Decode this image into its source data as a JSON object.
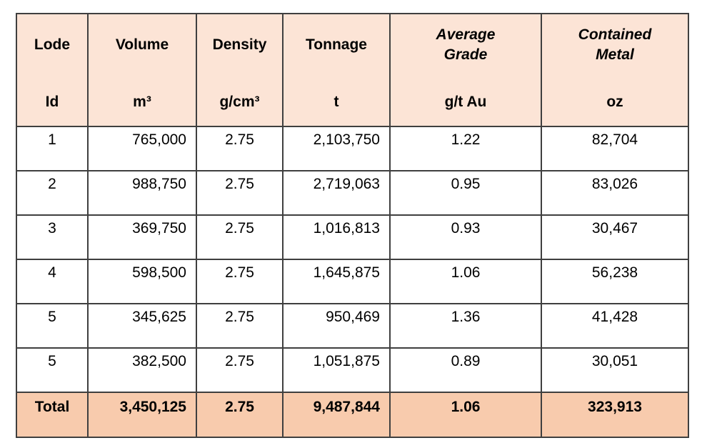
{
  "table": {
    "colors": {
      "header_bg": "#FCE4D6",
      "total_bg": "#F8CBAD",
      "border": "#3F3F3F",
      "text": "#000000"
    },
    "columns": [
      {
        "title": "Lode",
        "unit": "Id"
      },
      {
        "title": "Volume",
        "unit": "m³"
      },
      {
        "title": "Density",
        "unit": "g/cm³"
      },
      {
        "title": "Tonnage",
        "unit": "t"
      },
      {
        "title": "Average Grade",
        "unit": "g/t Au"
      },
      {
        "title": "Contained Metal",
        "unit": "oz"
      }
    ],
    "rows": [
      {
        "lode": "1",
        "volume": "765,000",
        "density": "2.75",
        "tonnage": "2,103,750",
        "grade": "1.22",
        "metal": "82,704"
      },
      {
        "lode": "2",
        "volume": "988,750",
        "density": "2.75",
        "tonnage": "2,719,063",
        "grade": "0.95",
        "metal": "83,026"
      },
      {
        "lode": "3",
        "volume": "369,750",
        "density": "2.75",
        "tonnage": "1,016,813",
        "grade": "0.93",
        "metal": "30,467"
      },
      {
        "lode": "4",
        "volume": "598,500",
        "density": "2.75",
        "tonnage": "1,645,875",
        "grade": "1.06",
        "metal": "56,238"
      },
      {
        "lode": "5",
        "volume": "345,625",
        "density": "2.75",
        "tonnage": "950,469",
        "grade": "1.36",
        "metal": "41,428"
      },
      {
        "lode": "5",
        "volume": "382,500",
        "density": "2.75",
        "tonnage": "1,051,875",
        "grade": "0.89",
        "metal": "30,051"
      }
    ],
    "total": {
      "label": "Total",
      "volume": "3,450,125",
      "density": "2.75",
      "tonnage": "9,487,844",
      "grade": "1.06",
      "metal": "323,913"
    }
  }
}
